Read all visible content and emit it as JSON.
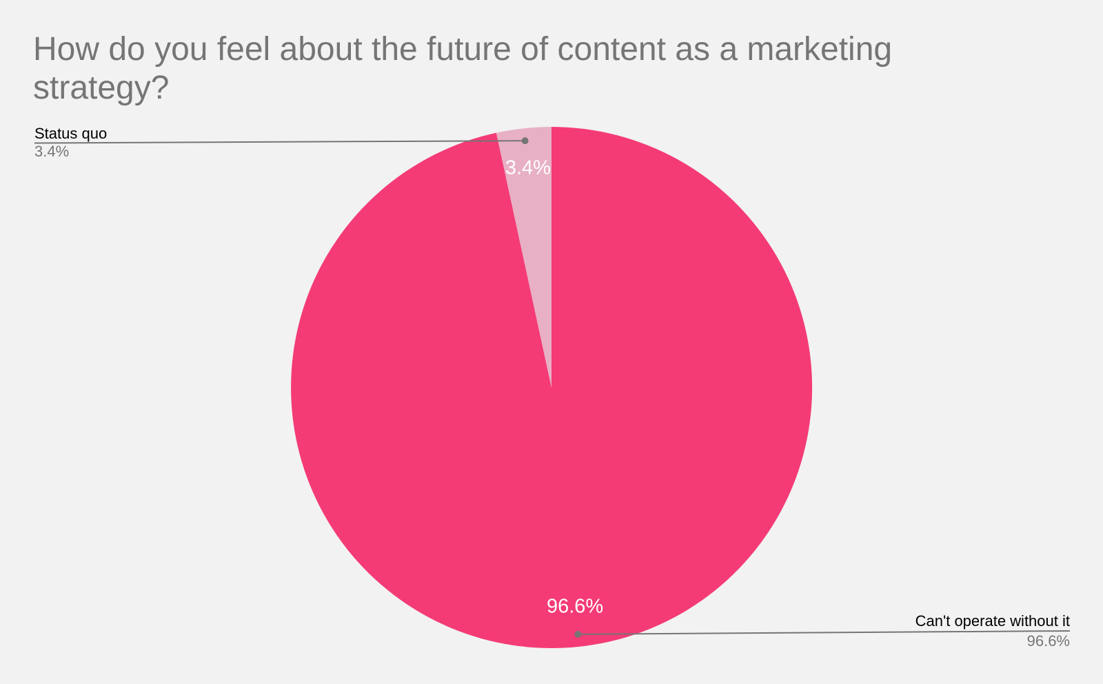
{
  "title": "How do you feel about the future of content as a marketing strategy?",
  "chart_data": {
    "type": "pie",
    "title": "How do you feel about the future of content as a marketing strategy?",
    "categories": [
      "Can't operate without it",
      "Status quo"
    ],
    "values": [
      96.6,
      3.4
    ],
    "labels": [
      "96.6%",
      "3.4%"
    ],
    "colors": [
      "#F43B76",
      "#E8B0C5"
    ],
    "start_angle_deg": 0,
    "direction": "clockwise-from-top",
    "legend_position": "none",
    "grid": false
  },
  "callouts": [
    {
      "label": "Status quo",
      "value": "3.4%"
    },
    {
      "label": "Can't operate without it",
      "value": "96.6%"
    }
  ],
  "colors": {
    "background": "#F2F2F2",
    "title": "#757575",
    "callout_label": "#000000",
    "callout_value": "#757575",
    "leader_line": "#757575",
    "slice_label": "#FFFFFF"
  }
}
